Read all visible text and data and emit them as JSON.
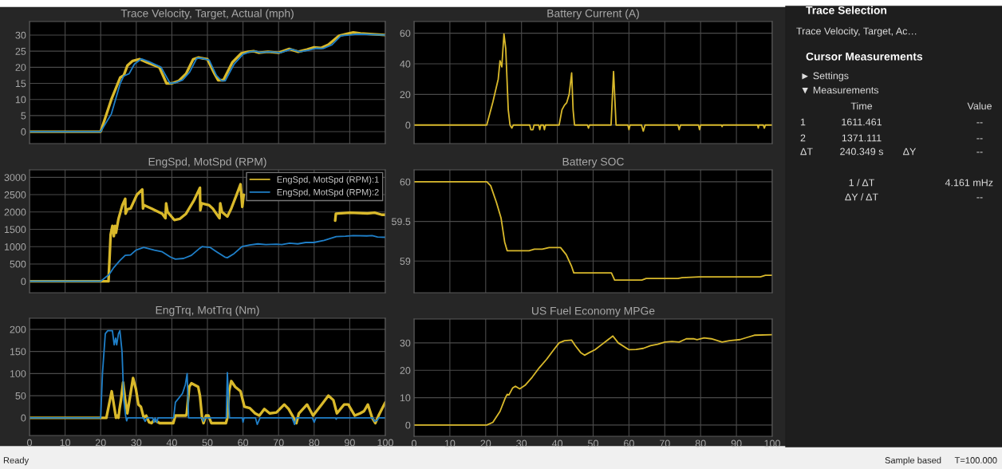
{
  "chart_data": [
    {
      "type": "line",
      "title": "Trace Velocity, Target, Actual (mph)",
      "xlim": [
        0,
        100
      ],
      "xticks": [
        0,
        10,
        20,
        30,
        40,
        50,
        60,
        70,
        80,
        90,
        100
      ],
      "ylim": [
        -3.7,
        34.2
      ],
      "yticks": [
        0,
        5,
        10,
        15,
        20,
        25,
        30
      ],
      "grid": true,
      "tick_labels": "y",
      "series": [
        {
          "color": "#d9b92b",
          "x": [
            0,
            20,
            23,
            25.5,
            26.5,
            27.5,
            29,
            31,
            33,
            36.5,
            38.5,
            40,
            42,
            44,
            46,
            47.5,
            50,
            52,
            53,
            54.5,
            57,
            59.5,
            61.5,
            63,
            64.5,
            67,
            70,
            73,
            75.5,
            78,
            80,
            82,
            84,
            87,
            89,
            91,
            93,
            100
          ],
          "values": [
            0,
            0,
            10,
            16.8,
            17.5,
            20.5,
            22,
            22.5,
            21.5,
            20,
            15,
            15,
            15.8,
            18,
            22.5,
            23,
            22.5,
            18,
            16,
            16,
            21.5,
            24.3,
            24.8,
            25,
            24.5,
            24.8,
            24.5,
            25.7,
            24.8,
            25.5,
            26.2,
            26,
            27,
            29.8,
            30.3,
            30.8,
            30.5,
            30
          ]
        },
        {
          "color": "#1f7fc8",
          "x": [
            0,
            20,
            23,
            25.5,
            26.5,
            28,
            29.5,
            31.5,
            33.5,
            37,
            39.5,
            41,
            43,
            45,
            47,
            48.5,
            50.5,
            52.5,
            54,
            55,
            57.5,
            60,
            62,
            63.5,
            65,
            67.5,
            70.5,
            73.5,
            76,
            78.5,
            80.5,
            82.5,
            85,
            87.5,
            90,
            92,
            100
          ],
          "values": [
            0,
            0,
            5.5,
            15,
            17.3,
            18,
            21,
            22.6,
            21.8,
            20,
            15,
            15.2,
            16,
            18.5,
            22.8,
            22.8,
            22.2,
            17.5,
            15.8,
            15.8,
            21,
            24,
            24.8,
            25,
            24.6,
            24.8,
            24.5,
            25.6,
            24.8,
            25.3,
            25.9,
            25.8,
            27,
            29.8,
            30,
            30.3,
            30
          ]
        }
      ]
    },
    {
      "type": "line",
      "title": "Battery Current (A)",
      "xlim": [
        0,
        100
      ],
      "xticks": [
        0,
        10,
        20,
        30,
        40,
        50,
        60,
        70,
        80,
        90,
        100
      ],
      "ylim": [
        -12.1,
        67.6
      ],
      "yticks": [
        0,
        20,
        40,
        60
      ],
      "grid": true,
      "tick_labels": "y",
      "series": [
        {
          "color": "#d9b92b",
          "x": [
            0,
            20.3,
            22,
            23.5,
            24,
            24.5,
            25.1,
            25.6,
            26.3,
            26.8,
            27.3,
            27.7,
            32.3,
            32.6,
            33.2,
            33.5,
            34.8,
            35.1,
            35.4,
            36.1,
            36.4,
            36.7,
            40.5,
            41.3,
            42,
            42.6,
            43.3,
            44,
            44.4,
            44.8,
            48.4,
            48.7,
            49,
            55,
            55.7,
            56.4,
            59.7,
            60,
            60.3,
            63.5,
            64,
            64.5,
            73.7,
            74,
            74.4,
            79.4,
            79.7,
            80,
            85.8,
            86,
            86.2,
            95.9,
            96.1,
            96.3,
            97.5,
            97.8,
            98.1,
            100
          ],
          "values": [
            0,
            0,
            15,
            30,
            42,
            38,
            59.5,
            50,
            10,
            0,
            -2,
            0,
            0,
            -3,
            -3,
            0,
            0,
            -3,
            0,
            0,
            -3,
            0,
            0,
            10,
            13,
            14.5,
            20,
            34,
            10,
            0,
            0,
            -2,
            0,
            0,
            35,
            0,
            0,
            -3,
            0,
            0,
            -4,
            0,
            0,
            -3,
            0,
            0,
            -3,
            0,
            0,
            -1,
            0,
            0,
            -2,
            0,
            0,
            -2,
            0,
            0
          ]
        }
      ]
    },
    {
      "type": "line",
      "title": "EngSpd, MotSpd (RPM)",
      "xlim": [
        0,
        100
      ],
      "xticks": [
        0,
        10,
        20,
        30,
        40,
        50,
        60,
        70,
        80,
        90,
        100
      ],
      "ylim": [
        -330,
        3215
      ],
      "yticks": [
        0,
        500,
        1000,
        1500,
        2000,
        2500,
        3000
      ],
      "grid": true,
      "tick_labels": "y",
      "legend": "top right",
      "series": [
        {
          "name": "EngSpd, MotSpd (RPM):1",
          "color": "#d9b92b",
          "x": [
            0,
            22.2,
            22.8,
            23.3,
            23.7,
            24,
            24.3,
            25,
            26.1,
            26.9,
            27,
            27.5,
            28.4,
            30.2,
            31.7,
            31.9,
            32.1,
            34.3,
            37.3,
            38.2,
            38.4,
            38.8,
            40.7,
            42.2,
            44,
            46.3,
            47.9,
            48,
            48.4,
            50.4,
            51.5,
            53.4,
            53.6,
            54.1,
            55.6,
            56.7,
            58.2,
            59.3,
            59.8,
            60.2,
            73,
            85.8,
            85.9,
            86.1,
            90,
            95,
            97,
            99,
            100
          ],
          "values": [
            0,
            0,
            1350,
            1600,
            1300,
            1600,
            1400,
            1800,
            2200,
            2380,
            1950,
            2080,
            2100,
            2500,
            2650,
            2100,
            2200,
            2100,
            1950,
            1820,
            2250,
            2000,
            1770,
            1800,
            1950,
            2350,
            2700,
            2050,
            2250,
            2200,
            2100,
            1820,
            2250,
            2000,
            1870,
            2100,
            2500,
            2800,
            2150,
            2500,
            null,
            null,
            1750,
            1950,
            1980,
            1960,
            1980,
            1920,
            1920
          ]
        },
        {
          "name": "EngSpd, MotSpd (RPM):2",
          "color": "#1f7fc8",
          "x": [
            0,
            20,
            22.4,
            23.7,
            25.4,
            26.9,
            28.4,
            29.9,
            32.1,
            35.1,
            37.3,
            39.6,
            41,
            43.3,
            45.5,
            47.8,
            48.5,
            50.7,
            52.6,
            54.9,
            55.6,
            57.5,
            59.7,
            61.9,
            64.2,
            66.4,
            69.4,
            70.9,
            73.1,
            75.4,
            77.6,
            79.9,
            82.8,
            86.2,
            88.8,
            91,
            94.8,
            96.3,
            97.8,
            100
          ],
          "values": [
            0,
            0,
            200,
            400,
            600,
            750,
            760,
            900,
            980,
            900,
            850,
            700,
            640,
            660,
            750,
            950,
            1000,
            980,
            850,
            700,
            680,
            800,
            1000,
            1050,
            1080,
            1060,
            1070,
            1060,
            1100,
            1080,
            1120,
            1120,
            1180,
            1290,
            1300,
            1320,
            1310,
            1320,
            1280,
            1270
          ]
        }
      ]
    },
    {
      "type": "line",
      "title": "Battery SOC",
      "xlim": [
        0,
        100
      ],
      "xticks": [
        0,
        10,
        20,
        30,
        40,
        50,
        60,
        70,
        80,
        90,
        100
      ],
      "ylim": [
        58.6,
        60.15
      ],
      "yticks": [
        59,
        59.5,
        60
      ],
      "grid": true,
      "tick_labels": "y",
      "series": [
        {
          "color": "#d9b92b",
          "x": [
            0,
            20.3,
            21.4,
            23,
            24.3,
            25.3,
            26,
            32.1,
            33.6,
            35.8,
            37.7,
            40.9,
            42.5,
            44,
            44.6,
            55.1,
            56,
            63.6,
            64.8,
            73.7,
            74.8,
            79.6,
            96.7,
            98.1,
            100
          ],
          "values": [
            60,
            60,
            59.95,
            59.74,
            59.54,
            59.24,
            59.13,
            59.13,
            59.15,
            59.15,
            59.17,
            59.17,
            59.08,
            58.93,
            58.85,
            58.85,
            58.76,
            58.76,
            58.78,
            58.78,
            58.79,
            58.8,
            58.8,
            58.82,
            58.82
          ]
        }
      ]
    },
    {
      "type": "line",
      "title": "EngTrq, MotTrq (Nm)",
      "xlim": [
        0,
        100
      ],
      "xticks": [
        0,
        10,
        20,
        30,
        40,
        50,
        60,
        70,
        80,
        90,
        100
      ],
      "ylim": [
        -40,
        225
      ],
      "yticks": [
        0,
        50,
        100,
        150,
        200
      ],
      "grid": true,
      "series": [
        {
          "color": "#d9b92b",
          "x": [
            0,
            21.6,
            23.1,
            24.3,
            24.7,
            25,
            25.3,
            25.7,
            26.3,
            26.6,
            26.9,
            27.5,
            29.1,
            29.9,
            30.6,
            31.3,
            32.1,
            32.8,
            33.6,
            34.3,
            35,
            36.6,
            39.6,
            40.4,
            41,
            44,
            44.2,
            44.9,
            45.5,
            47.4,
            47.9,
            48.5,
            48.9,
            49.6,
            50.3,
            51.1,
            55.2,
            55.6,
            56.1,
            56.7,
            57.8,
            59.3,
            60.4,
            61.9,
            63.4,
            64.6,
            66,
            67.5,
            69.4,
            71.6,
            72.8,
            73.9,
            75,
            75.7,
            78,
            79.7,
            82.1,
            84,
            85.4,
            86.4,
            88.4,
            89.6,
            91.4,
            92.9,
            94,
            95.1,
            96.3,
            97.2,
            98.1,
            100
          ],
          "values": [
            0,
            0,
            60,
            0,
            5,
            0,
            20,
            40,
            80,
            60,
            40,
            10,
            90,
            65,
            30,
            25,
            0,
            5,
            -10,
            -12,
            -5,
            -12,
            -12,
            -12,
            5,
            5,
            10,
            70,
            78,
            70,
            50,
            0,
            -12,
            5,
            5,
            -12,
            -12,
            0,
            60,
            83,
            70,
            60,
            25,
            22,
            10,
            5,
            20,
            10,
            12,
            30,
            20,
            5,
            -12,
            10,
            30,
            5,
            30,
            50,
            40,
            10,
            30,
            30,
            5,
            10,
            15,
            30,
            0,
            -12,
            5,
            35
          ]
        },
        {
          "color": "#1f7fc8",
          "x": [
            0,
            20,
            20.5,
            21.3,
            22,
            23.3,
            23.8,
            24.2,
            24.5,
            25,
            25.4,
            26,
            26.5,
            27,
            27.3,
            27.6,
            32,
            32.5,
            33,
            34.6,
            35,
            35.3,
            35.8,
            36.1,
            40.5,
            41,
            42,
            43,
            43.8,
            44.3,
            44.7,
            48.5,
            48.9,
            49.3,
            55.3,
            55.6,
            56.2,
            59.8,
            60,
            60.3,
            63.5,
            64,
            64.8,
            73.8,
            74.5,
            75,
            79.5,
            80,
            80.5,
            86,
            86.2,
            86.4,
            96.5,
            97,
            97.8,
            98.2,
            100
          ],
          "values": [
            0,
            0,
            100,
            190,
            197,
            197,
            165,
            180,
            165,
            190,
            197,
            150,
            40,
            5,
            -7,
            0,
            0,
            -8,
            0,
            0,
            -10,
            0,
            -10,
            0,
            0,
            35,
            45,
            55,
            75,
            100,
            0,
            0,
            -8,
            0,
            0,
            102,
            0,
            0,
            -10,
            0,
            0,
            -15,
            0,
            0,
            -15,
            0,
            0,
            -10,
            0,
            0,
            -3,
            0,
            0,
            -8,
            -5,
            0,
            0
          ]
        }
      ]
    },
    {
      "type": "line",
      "title": "US Fuel Economy MPGe",
      "xlim": [
        0,
        100
      ],
      "xticks": [
        0,
        10,
        20,
        30,
        40,
        50,
        60,
        70,
        80,
        90,
        100
      ],
      "ylim": [
        -4.1,
        38.7
      ],
      "yticks": [
        0,
        10,
        20,
        30
      ],
      "grid": true,
      "series": [
        {
          "color": "#d9b92b",
          "x": [
            0,
            20.3,
            22,
            24,
            25.5,
            26,
            26.5,
            27.5,
            28.3,
            29.5,
            31,
            33,
            35,
            37,
            39,
            40.5,
            42,
            44,
            45,
            46.5,
            47.6,
            49,
            50.5,
            52.5,
            55.5,
            57,
            60,
            62,
            64,
            66,
            68,
            70,
            72,
            74,
            76,
            78,
            79,
            81,
            83,
            86,
            88,
            91,
            93,
            95,
            100
          ],
          "values": [
            0,
            0,
            1,
            5,
            10,
            11.2,
            11,
            13.5,
            14.2,
            13.2,
            14.5,
            17.5,
            21,
            24,
            27.5,
            30,
            30.8,
            31,
            29,
            26.5,
            25.5,
            26.5,
            27.5,
            29.5,
            32.5,
            30,
            27.5,
            27.6,
            28,
            29,
            29.5,
            30.3,
            30.5,
            30.3,
            31.5,
            31.5,
            31.2,
            31.8,
            31.5,
            30.3,
            30.8,
            31.2,
            32,
            32.8,
            33
          ]
        }
      ]
    },
    {
      "type": "other",
      "title": "Trace Selection",
      "annotations": [
        "Trace Velocity, Target, Ac…",
        "Cursor Measurements",
        "► Settings",
        "▼ Measurements",
        "Time",
        "Value",
        "1",
        "1611.461",
        "--",
        "2",
        "1371.111",
        "--",
        "ΔT",
        "240.349 s",
        "ΔY",
        "--",
        "1 / ΔT",
        "4.161 mHz",
        "ΔY / ΔT",
        "--",
        "Ready",
        "Sample based",
        "T=100.000"
      ]
    }
  ]
}
